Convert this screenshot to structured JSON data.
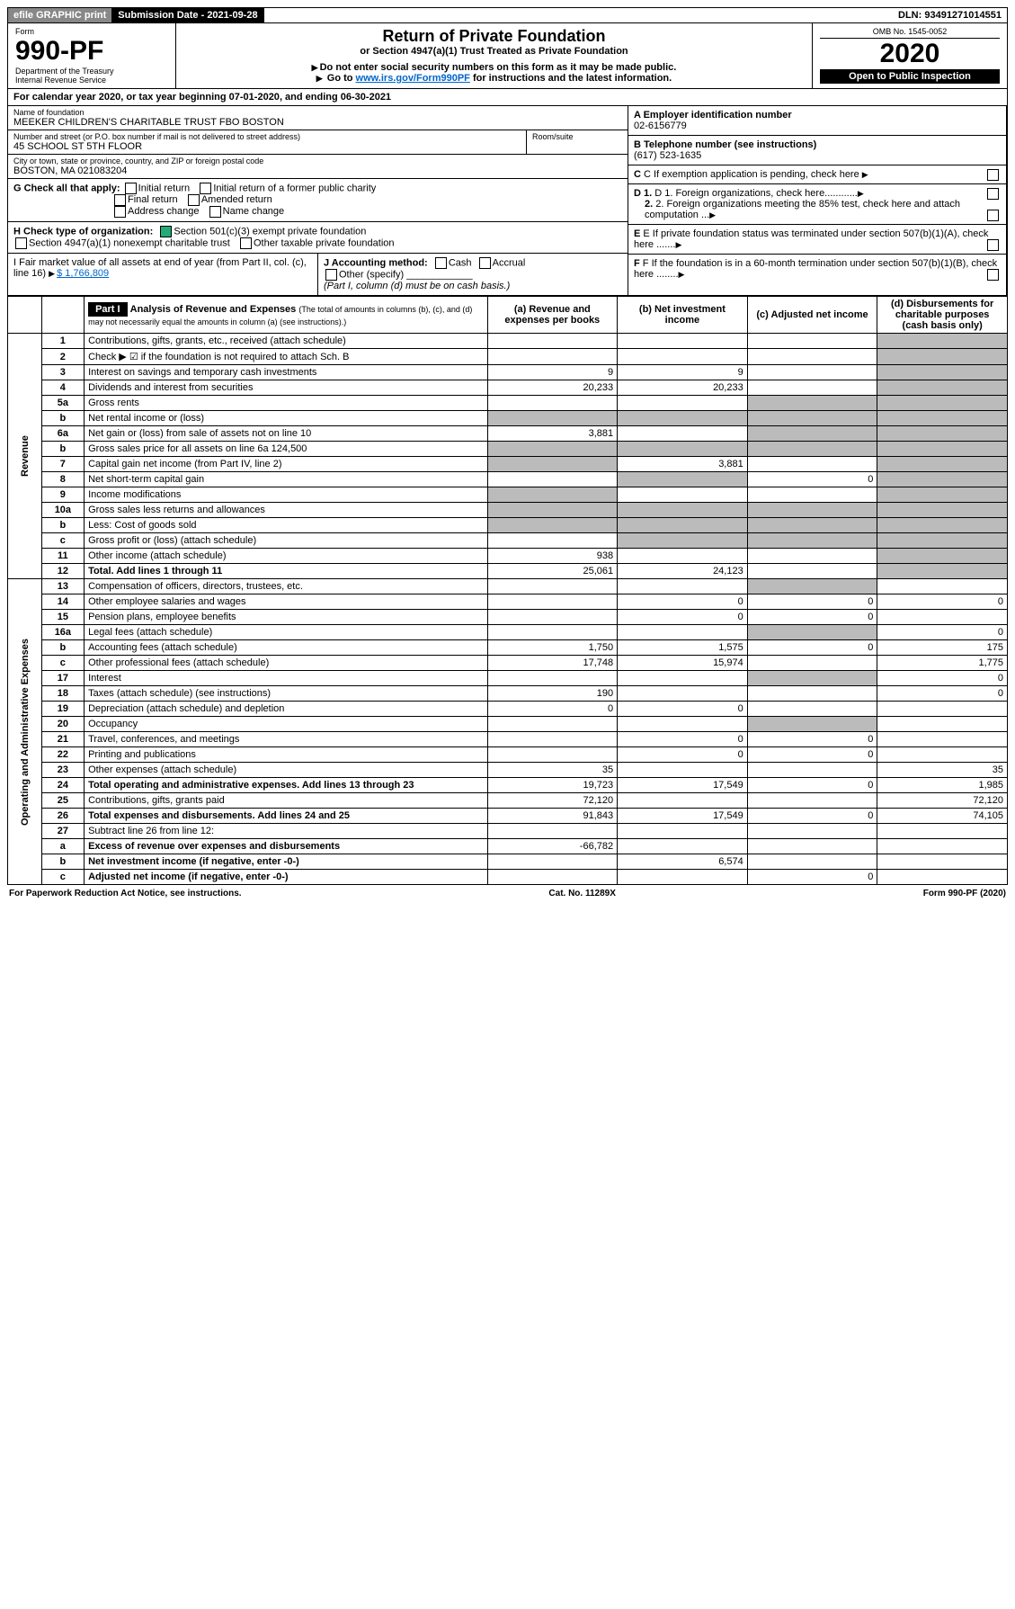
{
  "topbar": {
    "efile": "efile GRAPHIC print",
    "submission": "Submission Date - 2021-09-28",
    "dln": "DLN: 93491271014551"
  },
  "header": {
    "form_word": "Form",
    "form_num": "990-PF",
    "dept": "Department of the Treasury",
    "irs": "Internal Revenue Service",
    "title": "Return of Private Foundation",
    "subtitle": "or Section 4947(a)(1) Trust Treated as Private Foundation",
    "note1": "Do not enter social security numbers on this form as it may be made public.",
    "note2_pre": "Go to ",
    "note2_link": "www.irs.gov/Form990PF",
    "note2_post": " for instructions and the latest information.",
    "omb": "OMB No. 1545-0052",
    "year": "2020",
    "open": "Open to Public Inspection"
  },
  "cal": {
    "pre": "For calendar year 2020, or tax year beginning ",
    "begin": "07-01-2020",
    "mid": ", and ending ",
    "end": "06-30-2021"
  },
  "info": {
    "name_lbl": "Name of foundation",
    "name": "MEEKER CHILDREN'S CHARITABLE TRUST FBO BOSTON",
    "addr_lbl": "Number and street (or P.O. box number if mail is not delivered to street address)",
    "addr": "45 SCHOOL ST 5TH FLOOR",
    "room_lbl": "Room/suite",
    "city_lbl": "City or town, state or province, country, and ZIP or foreign postal code",
    "city": "BOSTON, MA 021083204",
    "a_lbl": "A Employer identification number",
    "a": "02-6156779",
    "b_lbl": "B Telephone number (see instructions)",
    "b": "(617) 523-1635",
    "c": "C If exemption application is pending, check here",
    "d1": "D 1. Foreign organizations, check here............",
    "d2": "2. Foreign organizations meeting the 85% test, check here and attach computation ...",
    "e": "E If private foundation status was terminated under section 507(b)(1)(A), check here .......",
    "f": "F If the foundation is in a 60-month termination under section 507(b)(1)(B), check here ........"
  },
  "g": {
    "lbl": "G Check all that apply:",
    "o1": "Initial return",
    "o2": "Initial return of a former public charity",
    "o3": "Final return",
    "o4": "Amended return",
    "o5": "Address change",
    "o6": "Name change"
  },
  "h": {
    "lbl": "H Check type of organization:",
    "o1": "Section 501(c)(3) exempt private foundation",
    "o2": "Section 4947(a)(1) nonexempt charitable trust",
    "o3": "Other taxable private foundation"
  },
  "i": {
    "lbl": "I Fair market value of all assets at end of year (from Part II, col. (c), line 16)",
    "val": "$  1,766,809"
  },
  "j": {
    "lbl": "J Accounting method:",
    "o1": "Cash",
    "o2": "Accrual",
    "o3": "Other (specify)",
    "note": "(Part I, column (d) must be on cash basis.)"
  },
  "part1": {
    "hdr": "Part I",
    "title": "Analysis of Revenue and Expenses",
    "sub": "(The total of amounts in columns (b), (c), and (d) may not necessarily equal the amounts in column (a) (see instructions).)",
    "ca": "(a) Revenue and expenses per books",
    "cb": "(b) Net investment income",
    "cc": "(c) Adjusted net income",
    "cd": "(d) Disbursements for charitable purposes (cash basis only)"
  },
  "side": {
    "rev": "Revenue",
    "exp": "Operating and Administrative Expenses"
  },
  "rows": [
    {
      "n": "1",
      "d": "Contributions, gifts, grants, etc., received (attach schedule)"
    },
    {
      "n": "2",
      "d": "Check ▶ ☑ if the foundation is not required to attach Sch. B"
    },
    {
      "n": "3",
      "d": "Interest on savings and temporary cash investments",
      "a": "9",
      "b": "9"
    },
    {
      "n": "4",
      "d": "Dividends and interest from securities",
      "a": "20,233",
      "b": "20,233"
    },
    {
      "n": "5a",
      "d": "Gross rents"
    },
    {
      "n": "b",
      "d": "Net rental income or (loss)"
    },
    {
      "n": "6a",
      "d": "Net gain or (loss) from sale of assets not on line 10",
      "a": "3,881"
    },
    {
      "n": "b",
      "d": "Gross sales price for all assets on line 6a   124,500"
    },
    {
      "n": "7",
      "d": "Capital gain net income (from Part IV, line 2)",
      "b": "3,881"
    },
    {
      "n": "8",
      "d": "Net short-term capital gain",
      "c": "0"
    },
    {
      "n": "9",
      "d": "Income modifications"
    },
    {
      "n": "10a",
      "d": "Gross sales less returns and allowances"
    },
    {
      "n": "b",
      "d": "Less: Cost of goods sold"
    },
    {
      "n": "c",
      "d": "Gross profit or (loss) (attach schedule)"
    },
    {
      "n": "11",
      "d": "Other income (attach schedule)",
      "a": "938"
    },
    {
      "n": "12",
      "d": "Total. Add lines 1 through 11",
      "a": "25,061",
      "b": "24,123",
      "bold": true
    },
    {
      "n": "13",
      "d": "Compensation of officers, directors, trustees, etc."
    },
    {
      "n": "14",
      "d": "Other employee salaries and wages",
      "b": "0",
      "c": "0",
      "dd": "0"
    },
    {
      "n": "15",
      "d": "Pension plans, employee benefits",
      "b": "0",
      "c": "0"
    },
    {
      "n": "16a",
      "d": "Legal fees (attach schedule)",
      "dd": "0"
    },
    {
      "n": "b",
      "d": "Accounting fees (attach schedule)",
      "a": "1,750",
      "b": "1,575",
      "c": "0",
      "dd": "175"
    },
    {
      "n": "c",
      "d": "Other professional fees (attach schedule)",
      "a": "17,748",
      "b": "15,974",
      "dd": "1,775"
    },
    {
      "n": "17",
      "d": "Interest",
      "dd": "0"
    },
    {
      "n": "18",
      "d": "Taxes (attach schedule) (see instructions)",
      "a": "190",
      "dd": "0"
    },
    {
      "n": "19",
      "d": "Depreciation (attach schedule) and depletion",
      "a": "0",
      "b": "0"
    },
    {
      "n": "20",
      "d": "Occupancy"
    },
    {
      "n": "21",
      "d": "Travel, conferences, and meetings",
      "b": "0",
      "c": "0"
    },
    {
      "n": "22",
      "d": "Printing and publications",
      "b": "0",
      "c": "0"
    },
    {
      "n": "23",
      "d": "Other expenses (attach schedule)",
      "a": "35",
      "dd": "35"
    },
    {
      "n": "24",
      "d": "Total operating and administrative expenses. Add lines 13 through 23",
      "a": "19,723",
      "b": "17,549",
      "c": "0",
      "dd": "1,985",
      "bold": true
    },
    {
      "n": "25",
      "d": "Contributions, gifts, grants paid",
      "a": "72,120",
      "dd": "72,120"
    },
    {
      "n": "26",
      "d": "Total expenses and disbursements. Add lines 24 and 25",
      "a": "91,843",
      "b": "17,549",
      "c": "0",
      "dd": "74,105",
      "bold": true
    },
    {
      "n": "27",
      "d": "Subtract line 26 from line 12:"
    },
    {
      "n": "a",
      "d": "Excess of revenue over expenses and disbursements",
      "a": "-66,782",
      "bold": true
    },
    {
      "n": "b",
      "d": "Net investment income (if negative, enter -0-)",
      "b": "6,574",
      "bold": true
    },
    {
      "n": "c",
      "d": "Adjusted net income (if negative, enter -0-)",
      "c": "0",
      "bold": true
    }
  ],
  "grey": {
    "a": [
      "b",
      "b2",
      "7",
      "8",
      "9",
      "10a",
      "b3",
      "27"
    ],
    "b": [
      "5a",
      "b",
      "6a",
      "b2",
      "10a",
      "b3",
      "c",
      "25",
      "27",
      "a",
      "c2"
    ],
    "c": [
      "5a",
      "b",
      "6a",
      "b2",
      "7",
      "10a",
      "b3",
      "c",
      "13",
      "16a",
      "17",
      "18",
      "20",
      "23",
      "25",
      "27",
      "a",
      "b4"
    ],
    "d": [
      "1",
      "2",
      "3",
      "4",
      "5a",
      "b",
      "6a",
      "b2",
      "7",
      "8",
      "9",
      "10a",
      "b3",
      "c",
      "11",
      "12",
      "13",
      "19",
      "27",
      "a",
      "b4",
      "c2"
    ]
  },
  "footer": {
    "l": "For Paperwork Reduction Act Notice, see instructions.",
    "c": "Cat. No. 11289X",
    "r": "Form 990-PF (2020)"
  }
}
